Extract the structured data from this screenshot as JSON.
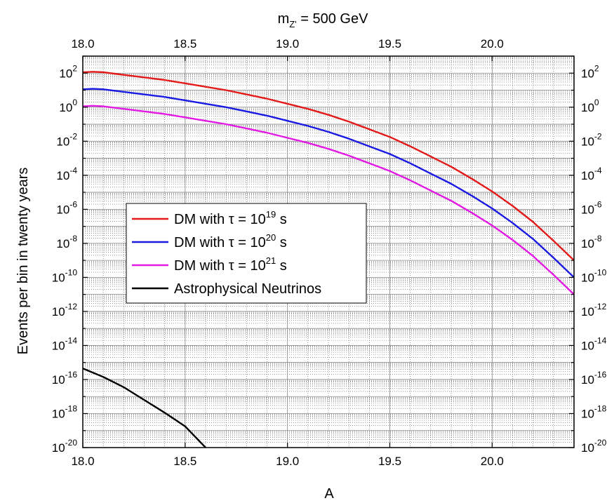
{
  "chart_data": {
    "type": "line",
    "title": "m",
    "title_sub": "Z'",
    "title_rest": " = 500 GeV",
    "xlabel": "A",
    "ylabel": "Events per bin in twenty years",
    "xlim": [
      18.0,
      20.4
    ],
    "ylim_log10": [
      -20,
      3
    ],
    "y_scale": "log",
    "x_ticks": [
      "18.0",
      "18.5",
      "19.0",
      "19.5",
      "20.0"
    ],
    "x_tick_values": [
      18.0,
      18.5,
      19.0,
      19.5,
      20.0
    ],
    "y_tick_exponents": [
      2,
      0,
      -2,
      -4,
      -6,
      -8,
      -10,
      -12,
      -14,
      -16,
      -18,
      -20
    ],
    "y_tick_base": "10",
    "grid": true,
    "legend_position": "center-left",
    "series": [
      {
        "name": "DM with τ = 10",
        "name_exp": "19",
        "name_unit": " s",
        "color": "#e31a1a",
        "x": [
          18.0,
          18.05,
          18.1,
          18.2,
          18.3,
          18.4,
          18.5,
          18.6,
          18.7,
          18.8,
          18.9,
          19.0,
          19.1,
          19.2,
          19.3,
          19.4,
          19.5,
          19.6,
          19.7,
          19.8,
          19.9,
          20.0,
          20.1,
          20.2,
          20.3,
          20.4
        ],
        "log10_y": [
          2.05,
          2.08,
          2.05,
          1.9,
          1.75,
          1.6,
          1.4,
          1.2,
          1.0,
          0.75,
          0.5,
          0.2,
          -0.1,
          -0.45,
          -0.85,
          -1.3,
          -1.75,
          -2.3,
          -2.9,
          -3.5,
          -4.2,
          -4.95,
          -5.8,
          -6.75,
          -7.85,
          -9.0
        ]
      },
      {
        "name": "DM with τ = 10",
        "name_exp": "20",
        "name_unit": " s",
        "color": "#1a1ae3",
        "x": [
          18.0,
          18.05,
          18.1,
          18.2,
          18.3,
          18.4,
          18.5,
          18.6,
          18.7,
          18.8,
          18.9,
          19.0,
          19.1,
          19.2,
          19.3,
          19.4,
          19.5,
          19.6,
          19.7,
          19.8,
          19.9,
          20.0,
          20.1,
          20.2,
          20.3,
          20.4
        ],
        "log10_y": [
          1.05,
          1.08,
          1.05,
          0.9,
          0.75,
          0.6,
          0.4,
          0.2,
          0.0,
          -0.25,
          -0.5,
          -0.8,
          -1.1,
          -1.45,
          -1.85,
          -2.3,
          -2.75,
          -3.3,
          -3.9,
          -4.5,
          -5.2,
          -5.95,
          -6.8,
          -7.75,
          -8.85,
          -10.0
        ]
      },
      {
        "name": "DM with τ = 10",
        "name_exp": "21",
        "name_unit": " s",
        "color": "#e31ae3",
        "x": [
          18.0,
          18.05,
          18.1,
          18.2,
          18.3,
          18.4,
          18.5,
          18.6,
          18.7,
          18.8,
          18.9,
          19.0,
          19.1,
          19.2,
          19.3,
          19.4,
          19.5,
          19.6,
          19.7,
          19.8,
          19.9,
          20.0,
          20.1,
          20.2,
          20.3,
          20.4
        ],
        "log10_y": [
          0.05,
          0.08,
          0.05,
          -0.1,
          -0.25,
          -0.4,
          -0.6,
          -0.8,
          -1.0,
          -1.25,
          -1.5,
          -1.8,
          -2.1,
          -2.45,
          -2.85,
          -3.3,
          -3.75,
          -4.3,
          -4.9,
          -5.5,
          -6.2,
          -6.95,
          -7.8,
          -8.75,
          -9.85,
          -11.0
        ]
      },
      {
        "name": "Astrophysical Neutrinos",
        "name_exp": "",
        "name_unit": "",
        "color": "#000000",
        "x": [
          18.0,
          18.1,
          18.2,
          18.3,
          18.4,
          18.5,
          18.6
        ],
        "log10_y": [
          -15.35,
          -15.85,
          -16.45,
          -17.2,
          -17.95,
          -18.75,
          -20.0
        ]
      }
    ]
  }
}
